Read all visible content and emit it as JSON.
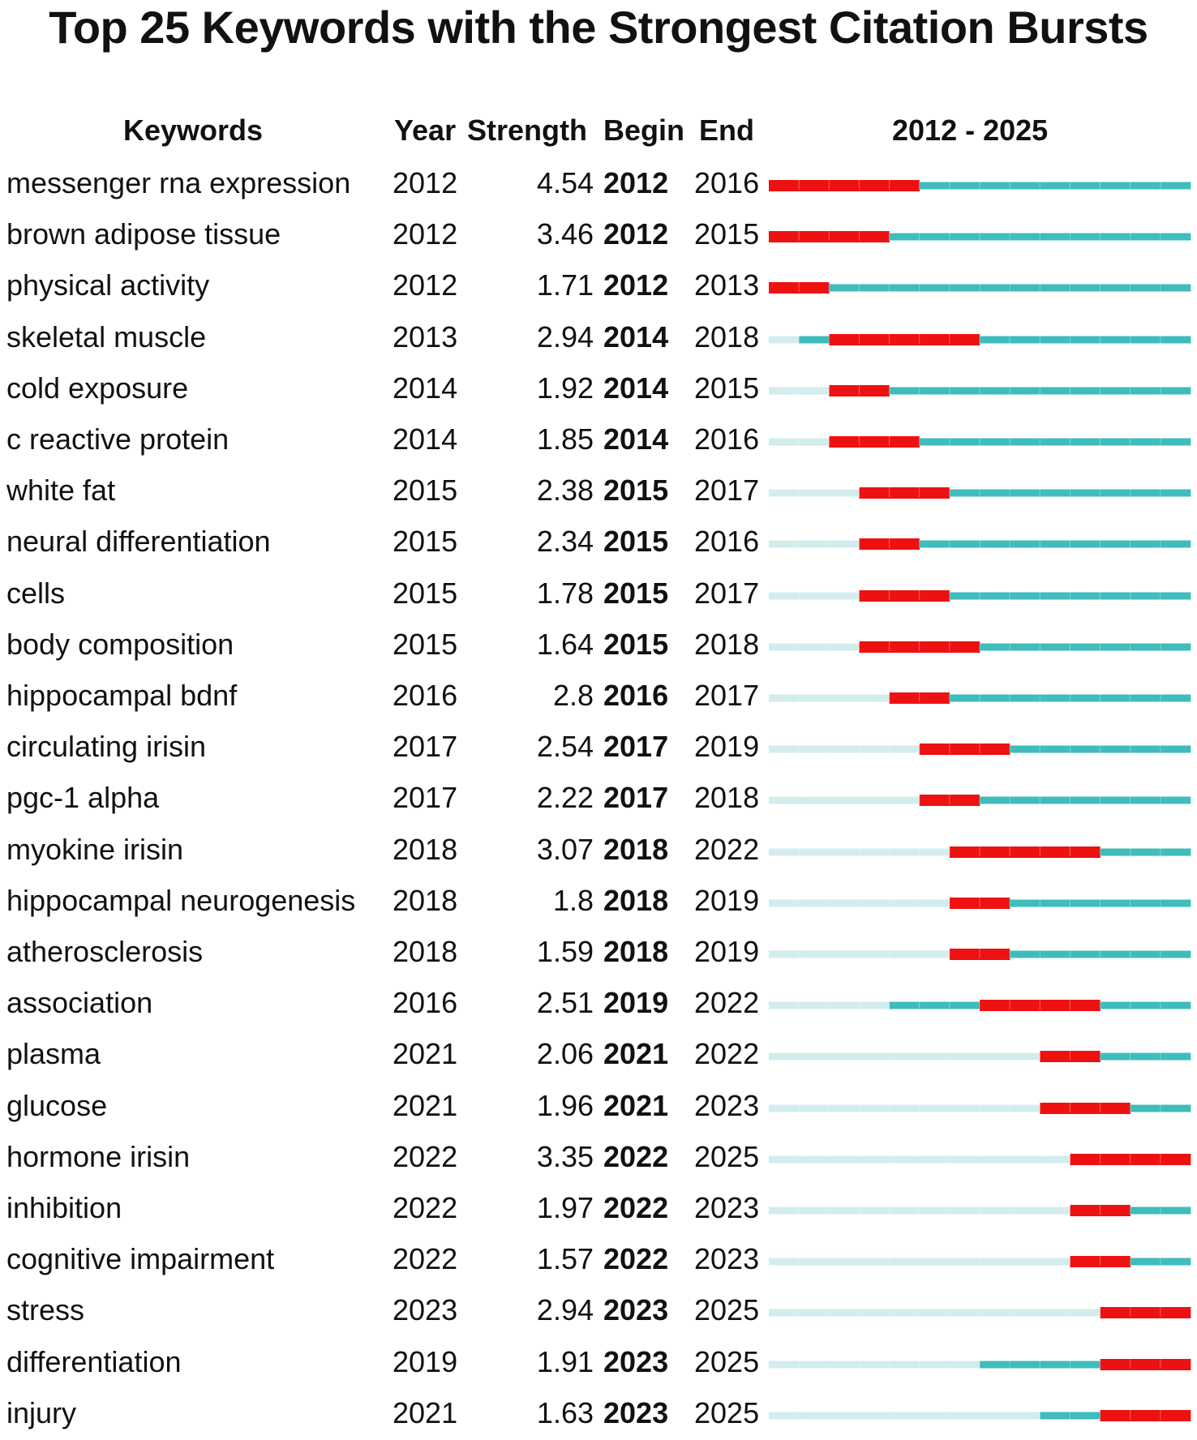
{
  "title": "Top 25 Keywords with the Strongest Citation Bursts",
  "headers": {
    "keywords": "Keywords",
    "year": "Year",
    "strength": "Strength",
    "begin": "Begin",
    "end": "End",
    "range": "2012 - 2025"
  },
  "colors": {
    "burst": "#ee1111",
    "active": "#3fbcbc",
    "inactive": "#d3ecec"
  },
  "chart_data": {
    "type": "table",
    "timeline_start": 2012,
    "timeline_end": 2025,
    "rows": [
      {
        "keyword": "messenger rna expression",
        "year": "2012",
        "strength": "4.54",
        "begin": "2012",
        "end": "2016"
      },
      {
        "keyword": "brown adipose tissue",
        "year": "2012",
        "strength": "3.46",
        "begin": "2012",
        "end": "2015"
      },
      {
        "keyword": "physical activity",
        "year": "2012",
        "strength": "1.71",
        "begin": "2012",
        "end": "2013"
      },
      {
        "keyword": "skeletal muscle",
        "year": "2013",
        "strength": "2.94",
        "begin": "2014",
        "end": "2018"
      },
      {
        "keyword": "cold exposure",
        "year": "2014",
        "strength": "1.92",
        "begin": "2014",
        "end": "2015"
      },
      {
        "keyword": "c reactive protein",
        "year": "2014",
        "strength": "1.85",
        "begin": "2014",
        "end": "2016"
      },
      {
        "keyword": "white fat",
        "year": "2015",
        "strength": "2.38",
        "begin": "2015",
        "end": "2017"
      },
      {
        "keyword": "neural differentiation",
        "year": "2015",
        "strength": "2.34",
        "begin": "2015",
        "end": "2016"
      },
      {
        "keyword": "cells",
        "year": "2015",
        "strength": "1.78",
        "begin": "2015",
        "end": "2017"
      },
      {
        "keyword": "body composition",
        "year": "2015",
        "strength": "1.64",
        "begin": "2015",
        "end": "2018"
      },
      {
        "keyword": "hippocampal bdnf",
        "year": "2016",
        "strength": "2.8",
        "begin": "2016",
        "end": "2017"
      },
      {
        "keyword": "circulating irisin",
        "year": "2017",
        "strength": "2.54",
        "begin": "2017",
        "end": "2019"
      },
      {
        "keyword": "pgc-1 alpha",
        "year": "2017",
        "strength": "2.22",
        "begin": "2017",
        "end": "2018"
      },
      {
        "keyword": "myokine irisin",
        "year": "2018",
        "strength": "3.07",
        "begin": "2018",
        "end": "2022"
      },
      {
        "keyword": "hippocampal neurogenesis",
        "year": "2018",
        "strength": "1.8",
        "begin": "2018",
        "end": "2019"
      },
      {
        "keyword": "atherosclerosis",
        "year": "2018",
        "strength": "1.59",
        "begin": "2018",
        "end": "2019"
      },
      {
        "keyword": "association",
        "year": "2016",
        "strength": "2.51",
        "begin": "2019",
        "end": "2022"
      },
      {
        "keyword": "plasma",
        "year": "2021",
        "strength": "2.06",
        "begin": "2021",
        "end": "2022"
      },
      {
        "keyword": "glucose",
        "year": "2021",
        "strength": "1.96",
        "begin": "2021",
        "end": "2023"
      },
      {
        "keyword": "hormone irisin",
        "year": "2022",
        "strength": "3.35",
        "begin": "2022",
        "end": "2025"
      },
      {
        "keyword": "inhibition",
        "year": "2022",
        "strength": "1.97",
        "begin": "2022",
        "end": "2023"
      },
      {
        "keyword": "cognitive impairment",
        "year": "2022",
        "strength": "1.57",
        "begin": "2022",
        "end": "2023"
      },
      {
        "keyword": "stress",
        "year": "2023",
        "strength": "2.94",
        "begin": "2023",
        "end": "2025"
      },
      {
        "keyword": "differentiation",
        "year": "2019",
        "strength": "1.91",
        "begin": "2023",
        "end": "2025"
      },
      {
        "keyword": "injury",
        "year": "2021",
        "strength": "1.63",
        "begin": "2023",
        "end": "2025"
      }
    ]
  }
}
